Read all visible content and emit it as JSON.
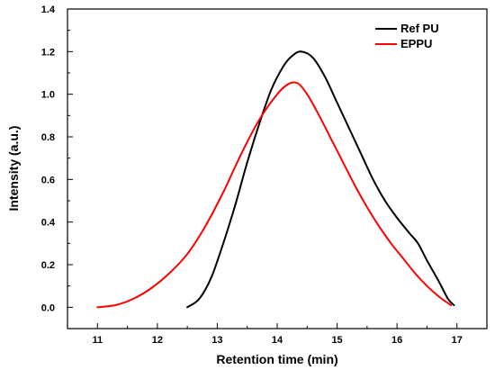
{
  "chart_data": {
    "type": "line",
    "title": "",
    "xlabel": "Retention time (min)",
    "ylabel": "Intensity (a.u.)",
    "xlim": [
      10.5,
      17.5
    ],
    "ylim": [
      -0.1,
      1.4
    ],
    "xticks": [
      11,
      12,
      13,
      14,
      15,
      16,
      17
    ],
    "yticks": [
      0.0,
      0.2,
      0.4,
      0.6,
      0.8,
      1.0,
      1.2,
      1.4
    ],
    "ytick_labels": [
      "0.0",
      "0.2",
      "0.4",
      "0.6",
      "0.8",
      "1.0",
      "1.2",
      "1.4"
    ],
    "grid": false,
    "legend_position": "top-right",
    "series": [
      {
        "name": "Ref PU",
        "color": "#000000",
        "points": [
          [
            12.5,
            0.0
          ],
          [
            12.7,
            0.04
          ],
          [
            12.9,
            0.14
          ],
          [
            13.1,
            0.3
          ],
          [
            13.3,
            0.48
          ],
          [
            13.5,
            0.68
          ],
          [
            13.7,
            0.86
          ],
          [
            13.9,
            1.02
          ],
          [
            14.1,
            1.13
          ],
          [
            14.25,
            1.18
          ],
          [
            14.4,
            1.2
          ],
          [
            14.6,
            1.17
          ],
          [
            14.8,
            1.08
          ],
          [
            15.0,
            0.96
          ],
          [
            15.2,
            0.84
          ],
          [
            15.4,
            0.72
          ],
          [
            15.6,
            0.6
          ],
          [
            15.8,
            0.5
          ],
          [
            16.0,
            0.42
          ],
          [
            16.2,
            0.35
          ],
          [
            16.35,
            0.3
          ],
          [
            16.5,
            0.22
          ],
          [
            16.7,
            0.12
          ],
          [
            16.85,
            0.04
          ],
          [
            16.95,
            0.01
          ]
        ]
      },
      {
        "name": "EPPU",
        "color": "#ff0000",
        "points": [
          [
            11.0,
            0.0
          ],
          [
            11.3,
            0.01
          ],
          [
            11.6,
            0.04
          ],
          [
            11.9,
            0.09
          ],
          [
            12.2,
            0.16
          ],
          [
            12.5,
            0.25
          ],
          [
            12.8,
            0.38
          ],
          [
            13.1,
            0.54
          ],
          [
            13.4,
            0.72
          ],
          [
            13.7,
            0.88
          ],
          [
            14.0,
            1.0
          ],
          [
            14.2,
            1.05
          ],
          [
            14.35,
            1.05
          ],
          [
            14.5,
            1.0
          ],
          [
            14.7,
            0.9
          ],
          [
            14.9,
            0.79
          ],
          [
            15.1,
            0.68
          ],
          [
            15.3,
            0.57
          ],
          [
            15.5,
            0.47
          ],
          [
            15.7,
            0.38
          ],
          [
            15.9,
            0.3
          ],
          [
            16.1,
            0.23
          ],
          [
            16.3,
            0.16
          ],
          [
            16.5,
            0.1
          ],
          [
            16.7,
            0.05
          ],
          [
            16.9,
            0.01
          ]
        ]
      }
    ]
  }
}
